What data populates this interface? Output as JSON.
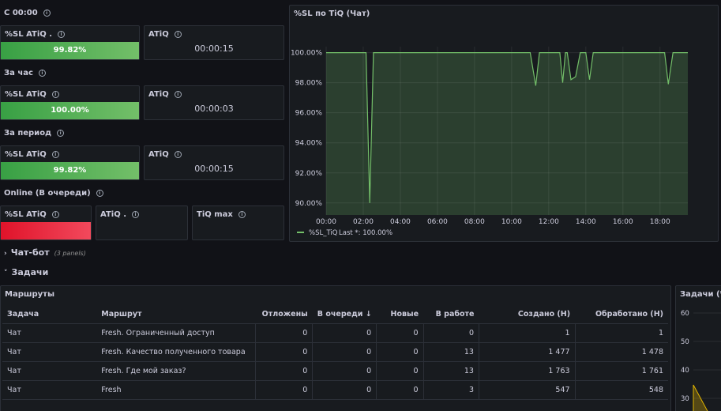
{
  "sections": {
    "since_midnight": "С 00:00",
    "last_hour": "За час",
    "period": "За период",
    "online": "Online (В очереди)"
  },
  "stats": {
    "r1": {
      "sl_title": "%SL ATiQ .",
      "sl_value": "99.82%",
      "atiq_title": "ATiQ",
      "atiq_value": "00:00:15"
    },
    "r2": {
      "sl_title": "%SL ATiQ",
      "sl_value": "100.00%",
      "atiq_title": "ATiQ",
      "atiq_value": "00:00:03"
    },
    "r3": {
      "sl_title": "%SL ATiQ",
      "sl_value": "99.82%",
      "atiq_title": "ATiQ",
      "atiq_value": "00:00:15"
    },
    "r4": {
      "sl_title": "%SL ATiQ",
      "atiq_title": "ATiQ .",
      "tiq_title": "TiQ max"
    }
  },
  "chart_panel": {
    "title": "%SL по TiQ (Чат)"
  },
  "chart_data": {
    "type": "line",
    "title": "%SL по TiQ (Чат)",
    "x_ticks": [
      "00:00",
      "02:00",
      "04:00",
      "06:00",
      "08:00",
      "10:00",
      "12:00",
      "14:00",
      "16:00",
      "18:00"
    ],
    "y_ticks": [
      "90.00%",
      "92.00%",
      "94.00%",
      "96.00%",
      "98.00%",
      "100.00%"
    ],
    "ylim": [
      89.2,
      100.4
    ],
    "xlim_hours": [
      0,
      19.5
    ],
    "series": [
      {
        "name": "%SL_TiQ",
        "color": "#73bf69",
        "points": [
          [
            0.0,
            100.0
          ],
          [
            2.15,
            100.0
          ],
          [
            2.35,
            90.0
          ],
          [
            2.55,
            100.0
          ],
          [
            11.0,
            100.0
          ],
          [
            11.3,
            97.8
          ],
          [
            11.5,
            100.0
          ],
          [
            12.6,
            100.0
          ],
          [
            12.75,
            98.0
          ],
          [
            12.9,
            100.0
          ],
          [
            13.0,
            100.0
          ],
          [
            13.2,
            98.2
          ],
          [
            13.45,
            98.4
          ],
          [
            13.7,
            100.0
          ],
          [
            14.0,
            100.0
          ],
          [
            14.2,
            98.2
          ],
          [
            14.4,
            100.0
          ],
          [
            18.25,
            100.0
          ],
          [
            18.45,
            97.9
          ],
          [
            18.7,
            100.0
          ],
          [
            19.5,
            100.0
          ]
        ]
      }
    ],
    "legend_text": "%SL_TiQ",
    "legend_last": "Last *: 100.00%",
    "legend_placement": "bottom-left",
    "grid": true
  },
  "rows": {
    "chatbot": {
      "label": "Чат-бот",
      "sub": "(3 panels)"
    },
    "tasks": {
      "label": "Задачи"
    }
  },
  "routes": {
    "title": "Маршруты",
    "headers": [
      "Задача",
      "Маршрут",
      "Отложены",
      "В очереди",
      "Новые",
      "В работе",
      "Создано (Н)",
      "Обработано (Н)"
    ],
    "sort_icon": "arrow-down-icon",
    "rows": [
      [
        "Чат",
        "Fresh. Ограниченный доступ",
        "0",
        "0",
        "0",
        "0",
        "1",
        "1"
      ],
      [
        "Чат",
        "Fresh. Качество полученного товара",
        "0",
        "0",
        "0",
        "13",
        "1 477",
        "1 478"
      ],
      [
        "Чат",
        "Fresh. Где мой заказ?",
        "0",
        "0",
        "0",
        "13",
        "1 763",
        "1 761"
      ],
      [
        "Чат",
        "Fresh",
        "0",
        "0",
        "0",
        "3",
        "547",
        "548"
      ]
    ]
  },
  "tasks_panel": {
    "title": "Задачи (Ча",
    "y_ticks": [
      "60",
      "50",
      "40",
      "30"
    ]
  }
}
